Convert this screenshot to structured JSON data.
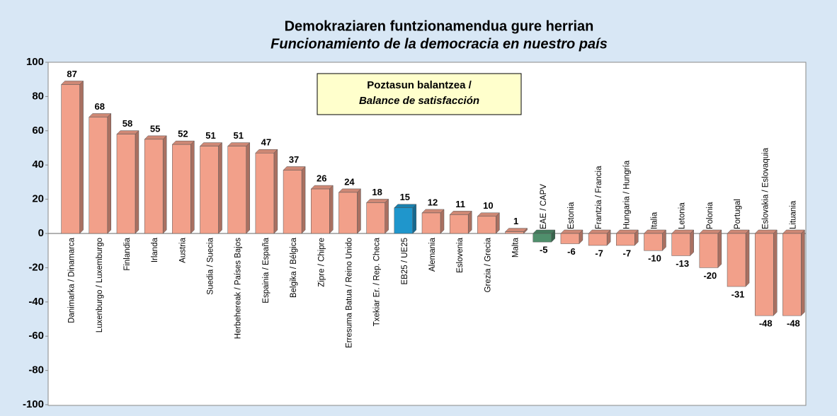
{
  "chart_data": {
    "type": "bar",
    "title": "Demokraziaren funtzionamendua gure herrian",
    "subtitle": "Funcionamiento de la democracia en nuestro país",
    "annotation": [
      "Poztasun balantzea /",
      "Balance de satisfacción"
    ],
    "categories": [
      "Danimarka / Dinamarca",
      "Luxenburgo / Luxemburgo",
      "Finlandia",
      "Irlanda",
      "Austria",
      "Suedia / Suecia",
      "Herbehereak / Países Bajos",
      "Espainia / España",
      "Belgika / Bélgica",
      "Zipre / Chipre",
      "Erresuma Batua / Reino Unido",
      "Txekiar Er. / Rep. Checa",
      "EB25 / UE25",
      "Alemania",
      "Eslovenia",
      "Grezia / Grecia",
      "Malta",
      "EAE / CAPV",
      "Estonia",
      "Frantzia / Francia",
      "Hungaria / Hungría",
      "Italia",
      "Letonia",
      "Polonia",
      "Portugal",
      "Eslovakia / Eslovaquia",
      "Lituania"
    ],
    "values": [
      87,
      68,
      58,
      55,
      52,
      51,
      51,
      47,
      37,
      26,
      24,
      18,
      15,
      12,
      11,
      10,
      1,
      -5,
      -6,
      -7,
      -7,
      -10,
      -13,
      -20,
      -31,
      -48,
      -48
    ],
    "colors": [
      "#f2a08a",
      "#f2a08a",
      "#f2a08a",
      "#f2a08a",
      "#f2a08a",
      "#f2a08a",
      "#f2a08a",
      "#f2a08a",
      "#f2a08a",
      "#f2a08a",
      "#f2a08a",
      "#f2a08a",
      "#1f96cc",
      "#f2a08a",
      "#f2a08a",
      "#f2a08a",
      "#f2a08a",
      "#4f8f6c",
      "#f2a08a",
      "#f2a08a",
      "#f2a08a",
      "#f2a08a",
      "#f2a08a",
      "#f2a08a",
      "#f2a08a",
      "#f2a08a",
      "#f2a08a"
    ],
    "label_colors": [
      "#000000",
      "#000000",
      "#000000",
      "#000000",
      "#000000",
      "#000000",
      "#000000",
      "#000000",
      "#000000",
      "#000000",
      "#000000",
      "#000000",
      "#5aaee0",
      "#000000",
      "#000000",
      "#000000",
      "#000000",
      "#5cc85c",
      "#000000",
      "#000000",
      "#000000",
      "#000000",
      "#000000",
      "#000000",
      "#000000",
      "#000000",
      "#000000"
    ],
    "ylim": [
      -100,
      100
    ],
    "yticks": [
      -100,
      -80,
      -60,
      -40,
      -20,
      0,
      20,
      40,
      60,
      80,
      100
    ],
    "grid": false
  }
}
